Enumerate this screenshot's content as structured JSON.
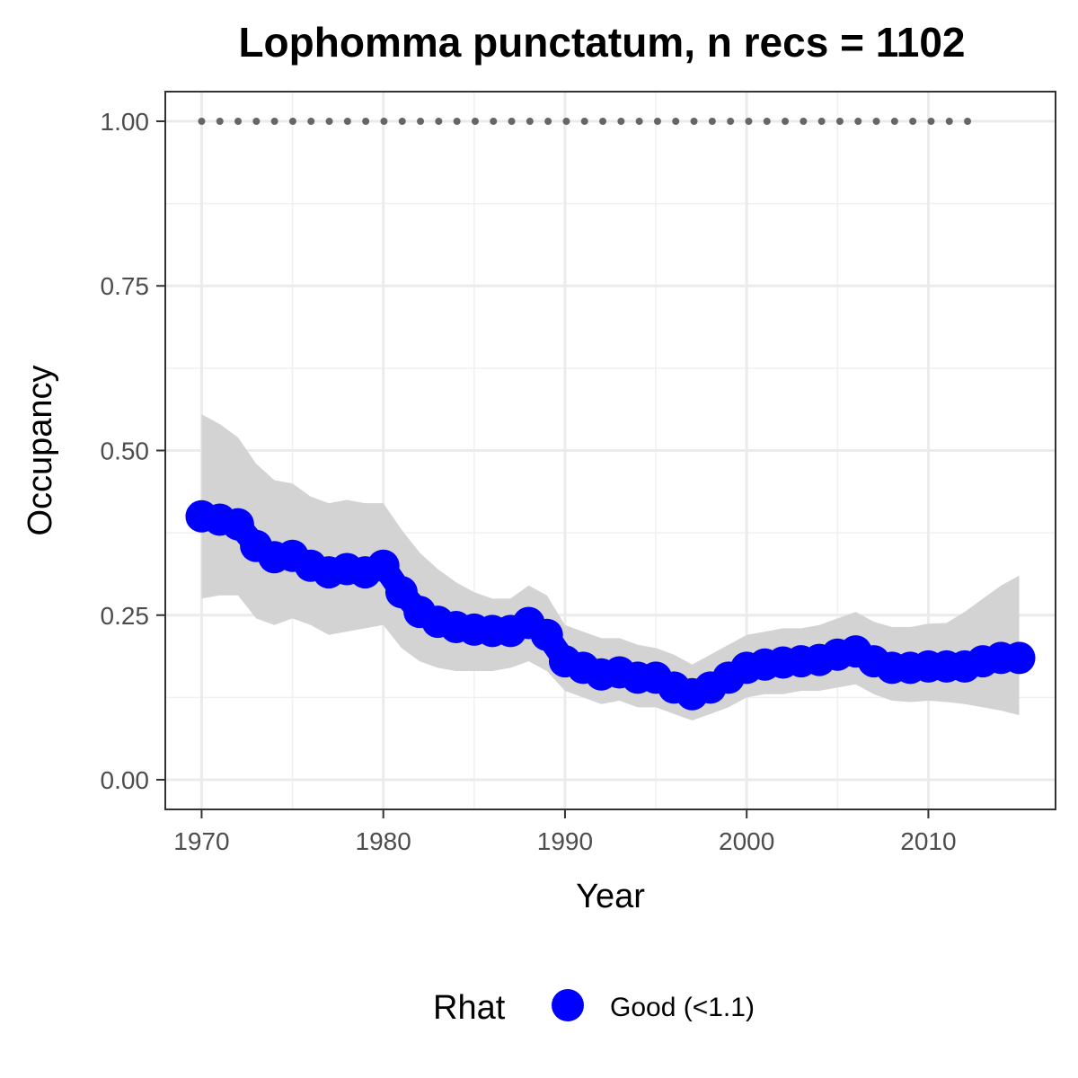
{
  "chart_data": {
    "type": "line",
    "title": "Lophomma punctatum, n recs = 1102",
    "xlabel": "Year",
    "ylabel": "Occupancy",
    "xlim": [
      1968,
      2017
    ],
    "ylim": [
      -0.045,
      1.045
    ],
    "x_ticks": [
      1970,
      1980,
      1990,
      2000,
      2010
    ],
    "x_tick_labels": [
      "1970",
      "1980",
      "1990",
      "2000",
      "2010"
    ],
    "y_ticks": [
      0,
      0.25,
      0.5,
      0.75,
      1.0
    ],
    "y_tick_labels": [
      "0.00",
      "0.25",
      "0.50",
      "0.75",
      "1.00"
    ],
    "grid": true,
    "x": [
      1970,
      1971,
      1972,
      1973,
      1974,
      1975,
      1976,
      1977,
      1978,
      1979,
      1980,
      1981,
      1982,
      1983,
      1984,
      1985,
      1986,
      1987,
      1988,
      1989,
      1990,
      1991,
      1992,
      1993,
      1994,
      1995,
      1996,
      1997,
      1998,
      1999,
      2000,
      2001,
      2002,
      2003,
      2004,
      2005,
      2006,
      2007,
      2008,
      2009,
      2010,
      2011,
      2012,
      2013,
      2014,
      2015
    ],
    "series": [
      {
        "legend_label": "Good (<1.1)",
        "color": "#0000ff",
        "values": [
          0.4,
          0.395,
          0.388,
          0.355,
          0.338,
          0.34,
          0.325,
          0.315,
          0.32,
          0.315,
          0.325,
          0.285,
          0.255,
          0.24,
          0.232,
          0.228,
          0.226,
          0.226,
          0.238,
          0.22,
          0.18,
          0.17,
          0.16,
          0.163,
          0.155,
          0.155,
          0.14,
          0.13,
          0.14,
          0.155,
          0.17,
          0.175,
          0.178,
          0.18,
          0.182,
          0.19,
          0.195,
          0.18,
          0.17,
          0.17,
          0.172,
          0.172,
          0.172,
          0.18,
          0.185,
          0.185
        ]
      }
    ],
    "ci_upper": [
      0.555,
      0.54,
      0.52,
      0.48,
      0.455,
      0.45,
      0.43,
      0.42,
      0.425,
      0.42,
      0.42,
      0.38,
      0.345,
      0.32,
      0.3,
      0.285,
      0.275,
      0.275,
      0.295,
      0.28,
      0.235,
      0.225,
      0.215,
      0.215,
      0.205,
      0.2,
      0.19,
      0.175,
      0.19,
      0.205,
      0.22,
      0.225,
      0.23,
      0.23,
      0.235,
      0.245,
      0.255,
      0.24,
      0.232,
      0.232,
      0.237,
      0.238,
      0.255,
      0.275,
      0.295,
      0.31
    ],
    "ci_lower": [
      0.275,
      0.28,
      0.28,
      0.245,
      0.235,
      0.245,
      0.235,
      0.22,
      0.225,
      0.23,
      0.235,
      0.2,
      0.18,
      0.17,
      0.165,
      0.165,
      0.165,
      0.17,
      0.18,
      0.165,
      0.135,
      0.125,
      0.115,
      0.12,
      0.11,
      0.11,
      0.1,
      0.09,
      0.1,
      0.11,
      0.125,
      0.13,
      0.13,
      0.135,
      0.135,
      0.14,
      0.145,
      0.13,
      0.12,
      0.118,
      0.12,
      0.118,
      0.115,
      0.11,
      0.105,
      0.098
    ],
    "ci_color": "#d3d3d3",
    "reference_line": {
      "x_start": 1970,
      "x_end": 2013,
      "y": 1.0,
      "color": "#666666"
    },
    "legend": {
      "title": "Rhat",
      "position": "bottom",
      "items": [
        {
          "label": "Good (<1.1)",
          "color": "#0000ff"
        }
      ]
    }
  }
}
